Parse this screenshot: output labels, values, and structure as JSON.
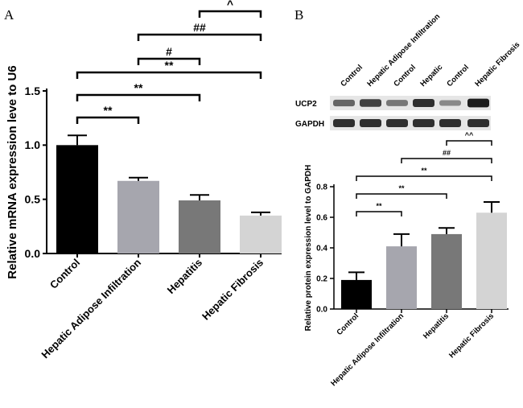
{
  "panel_a": {
    "letter": "A",
    "chart_data": {
      "type": "bar",
      "categories": [
        "Control",
        "Hepatic Adipose Infiltration",
        "Hepatitis",
        "Hepatic Fibrosis"
      ],
      "values": [
        1.0,
        0.67,
        0.49,
        0.35
      ],
      "errors": [
        0.09,
        0.03,
        0.05,
        0.03
      ],
      "colors": [
        "#000000",
        "#a6a6ae",
        "#787878",
        "#d4d4d4"
      ],
      "ylabel": "Relative mRNA expression leve to U6",
      "ylim": [
        0,
        1.5
      ],
      "yticks": [
        "0.0",
        "0.5",
        "1.0",
        "1.5"
      ],
      "ytick_values": [
        0,
        0.5,
        1.0,
        1.5
      ],
      "significance": [
        {
          "from": 0,
          "to": 1,
          "label": "**"
        },
        {
          "from": 0,
          "to": 2,
          "label": "**"
        },
        {
          "from": 0,
          "to": 3,
          "label": "**"
        },
        {
          "from": 1,
          "to": 2,
          "label": "#"
        },
        {
          "from": 1,
          "to": 3,
          "label": "##"
        },
        {
          "from": 2,
          "to": 3,
          "label": "^"
        }
      ]
    }
  },
  "panel_b": {
    "letter": "B",
    "blot": {
      "lanes": [
        "Control",
        "Hepatic Adipose Infiltration",
        "Control",
        "Hepatic",
        "Control",
        "Hepatic Fibrosis"
      ],
      "rows": [
        {
          "label": "UCP2",
          "intensities": [
            0.55,
            0.75,
            0.45,
            0.85,
            0.35,
            0.95
          ]
        },
        {
          "label": "GAPDH",
          "intensities": [
            0.85,
            0.85,
            0.85,
            0.85,
            0.85,
            0.85
          ]
        }
      ]
    },
    "chart_data": {
      "type": "bar",
      "categories": [
        "Control",
        "Hepatic Adipose Infiltration",
        "Hepatitis",
        "Hepatic Fibrosis"
      ],
      "values": [
        0.19,
        0.41,
        0.49,
        0.63
      ],
      "errors": [
        0.05,
        0.08,
        0.04,
        0.07
      ],
      "colors": [
        "#000000",
        "#a6a6ae",
        "#787878",
        "#d4d4d4"
      ],
      "ylabel": "Relative protein expression level to GAPDH",
      "ylim": [
        0,
        0.8
      ],
      "yticks": [
        "0.0",
        "0.2",
        "0.4",
        "0.6",
        "0.8"
      ],
      "ytick_values": [
        0,
        0.2,
        0.4,
        0.6,
        0.8
      ],
      "significance": [
        {
          "from": 0,
          "to": 1,
          "label": "**"
        },
        {
          "from": 0,
          "to": 2,
          "label": "**"
        },
        {
          "from": 0,
          "to": 3,
          "label": "**"
        },
        {
          "from": 1,
          "to": 3,
          "label": "##"
        },
        {
          "from": 2,
          "to": 3,
          "label": "^^"
        }
      ]
    }
  }
}
